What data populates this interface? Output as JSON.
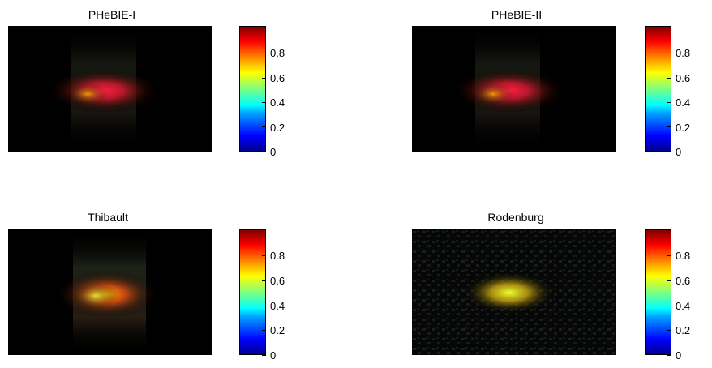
{
  "panels": [
    {
      "title": "PHeBIE-I",
      "colorbar_ticks": [
        "0",
        "0.2",
        "0.4",
        "0.6",
        "0.8"
      ],
      "style": "red"
    },
    {
      "title": "PHeBIE-II",
      "colorbar_ticks": [
        "0",
        "0.2",
        "0.4",
        "0.6",
        "0.8"
      ],
      "style": "red"
    },
    {
      "title": "Thibault",
      "colorbar_ticks": [
        "0",
        "0.2",
        "0.4",
        "0.6",
        "0.8"
      ],
      "style": "orange"
    },
    {
      "title": "Rodenburg",
      "colorbar_ticks": [
        "0",
        "0.2",
        "0.4",
        "0.6",
        "0.8"
      ],
      "style": "yellow"
    }
  ],
  "colormap": "jet"
}
